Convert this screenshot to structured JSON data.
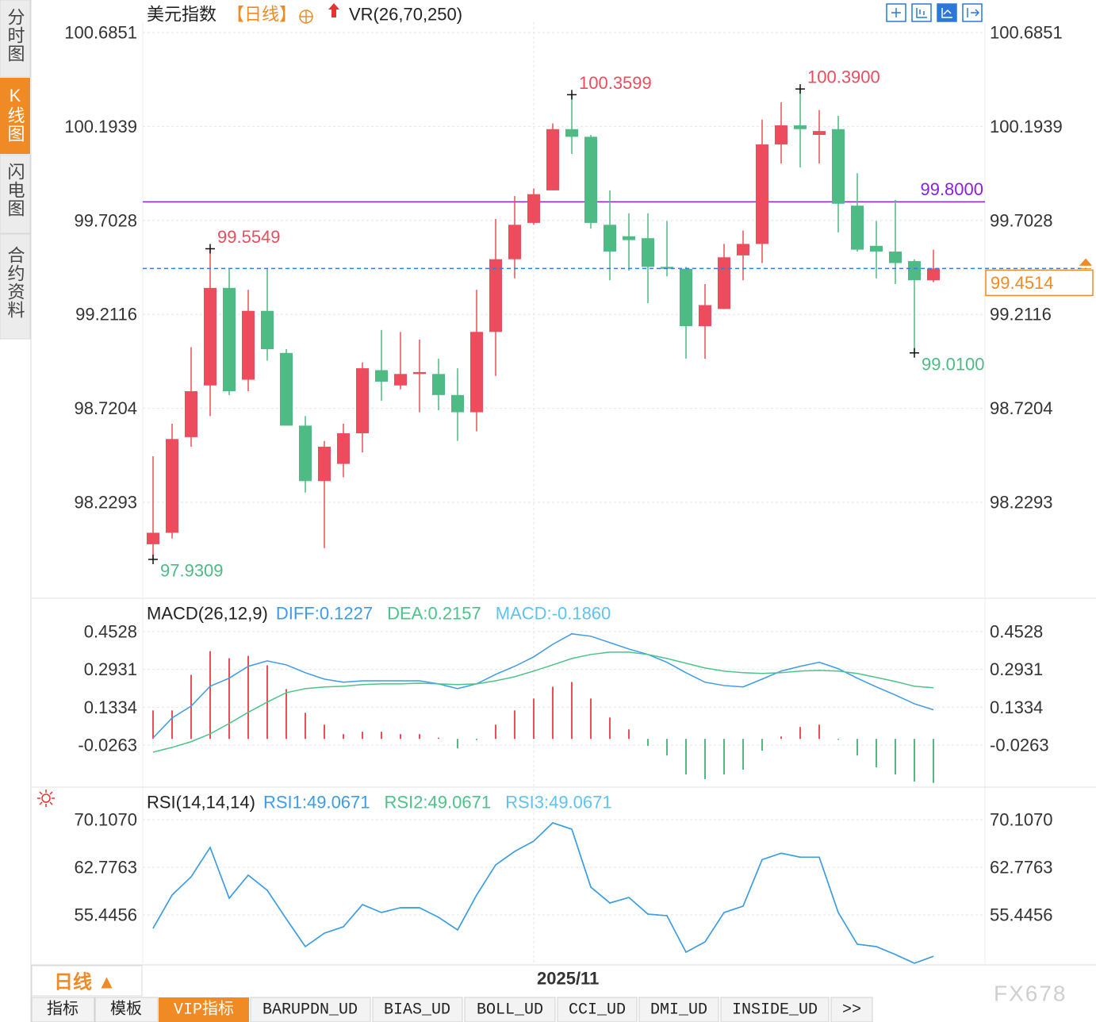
{
  "sidebar": [
    "分时图",
    "K线图",
    "闪电图",
    "合约资料"
  ],
  "chart_data": [
    {
      "type": "candlestick",
      "title": "美元指数",
      "subtitle": "【日线】",
      "indicator": "VR(26,70,250)",
      "categories": [
        null,
        null,
        null,
        null,
        null,
        null,
        null,
        null,
        null,
        null,
        null,
        null,
        null,
        null,
        null,
        null,
        null,
        null,
        null,
        null,
        "2025/11",
        null,
        null,
        null,
        null,
        null,
        null,
        null,
        null,
        null,
        null,
        null,
        null,
        null,
        null,
        null,
        null,
        null,
        null,
        null,
        null,
        null
      ],
      "open": [
        98.01,
        98.07,
        98.57,
        98.84,
        99.35,
        98.87,
        99.23,
        99.01,
        98.63,
        98.34,
        98.43,
        98.59,
        98.92,
        98.84,
        98.9,
        98.9,
        98.79,
        98.7,
        99.12,
        99.5,
        99.69,
        99.86,
        100.18,
        100.14,
        99.68,
        99.62,
        99.61,
        99.46,
        99.45,
        99.15,
        99.24,
        99.52,
        99.58,
        100.1,
        100.2,
        100.15,
        100.18,
        99.78,
        99.57,
        99.54,
        99.49,
        99.39
      ],
      "high": [
        98.47,
        98.64,
        99.04,
        99.5549,
        99.45,
        99.34,
        99.45,
        99.03,
        98.68,
        98.55,
        98.64,
        98.96,
        99.13,
        99.12,
        99.08,
        98.98,
        98.93,
        99.34,
        99.71,
        99.83,
        99.87,
        100.21,
        100.3599,
        100.15,
        99.86,
        99.74,
        99.74,
        99.7,
        99.46,
        99.37,
        99.58,
        99.65,
        100.23,
        100.32,
        100.39,
        100.28,
        100.25,
        99.95,
        99.7,
        99.81,
        99.5,
        99.55
      ],
      "low": [
        97.9309,
        98.04,
        98.52,
        98.68,
        98.79,
        98.81,
        98.97,
        98.63,
        98.28,
        97.99,
        98.36,
        98.49,
        98.76,
        98.82,
        98.7,
        98.71,
        98.55,
        98.6,
        98.89,
        99.4,
        99.68,
        99.86,
        100.05,
        99.66,
        99.39,
        99.44,
        99.27,
        99.41,
        98.98,
        98.98,
        99.24,
        99.39,
        99.48,
        100.0,
        99.98,
        100.0,
        99.64,
        99.54,
        99.4,
        99.37,
        99.01,
        99.38
      ],
      "close": [
        98.07,
        98.56,
        98.81,
        99.35,
        98.81,
        99.23,
        99.03,
        98.63,
        98.34,
        98.52,
        98.59,
        98.93,
        98.86,
        98.9,
        98.91,
        98.79,
        98.7,
        99.12,
        99.5,
        99.68,
        99.84,
        100.18,
        100.14,
        99.69,
        99.54,
        99.6,
        99.46,
        99.45,
        99.15,
        99.26,
        99.51,
        99.58,
        100.1,
        100.2,
        100.18,
        100.17,
        99.79,
        99.55,
        99.54,
        99.48,
        99.39,
        99.4514
      ],
      "up_color": "#eb4d5c",
      "down_color": "#4fba84",
      "ylim": [
        97.744,
        100.739
      ],
      "yticks": [
        100.6851,
        100.1939,
        99.7028,
        99.2116,
        98.7204,
        98.2293
      ],
      "grid": true,
      "annotations": [
        {
          "value": 99.5549,
          "label": "99.5549"
        },
        {
          "value": 100.3599,
          "label": "100.3599"
        },
        {
          "value": 100.39,
          "label": "100.3900"
        },
        {
          "value": 97.9309,
          "label": "97.9309"
        },
        {
          "value": 99.01,
          "label": "99.0100"
        }
      ],
      "hline": {
        "value": 99.8,
        "label": "99.8000",
        "color": "#8a1fe0"
      },
      "last_price": {
        "value": 99.4514,
        "label": "99.4514",
        "color": "#f08a24",
        "line_color": "#2d7fe0"
      }
    },
    {
      "type": "macd",
      "title": "MACD(26,12,9)",
      "ylim": [
        -0.197,
        0.583
      ],
      "yticks": [
        0.4528,
        0.2931,
        0.1334,
        -0.0263
      ],
      "grid": true,
      "series": [
        {
          "name": "DIFF:0.1227",
          "color": "#3d9be9",
          "values": [
            0.004,
            0.088,
            0.138,
            0.222,
            0.256,
            0.306,
            0.329,
            0.312,
            0.279,
            0.252,
            0.239,
            0.245,
            0.245,
            0.245,
            0.245,
            0.232,
            0.212,
            0.232,
            0.272,
            0.306,
            0.346,
            0.399,
            0.443,
            0.433,
            0.406,
            0.379,
            0.356,
            0.323,
            0.279,
            0.239,
            0.225,
            0.219,
            0.252,
            0.286,
            0.306,
            0.323,
            0.296,
            0.256,
            0.219,
            0.185,
            0.148,
            0.1227
          ]
        },
        {
          "name": "DEA:0.2157",
          "color": "#4cc38a",
          "values": [
            -0.056,
            -0.036,
            -0.012,
            0.021,
            0.065,
            0.112,
            0.155,
            0.195,
            0.212,
            0.219,
            0.222,
            0.229,
            0.232,
            0.232,
            0.235,
            0.232,
            0.229,
            0.232,
            0.245,
            0.262,
            0.286,
            0.312,
            0.339,
            0.356,
            0.366,
            0.366,
            0.356,
            0.339,
            0.319,
            0.299,
            0.286,
            0.279,
            0.276,
            0.279,
            0.286,
            0.289,
            0.286,
            0.276,
            0.259,
            0.242,
            0.222,
            0.2157
          ]
        },
        {
          "name": "MACD:-0.1860",
          "color": "#5fc3ef",
          "type": "bar",
          "up_color": "#eb4d5c",
          "down_color": "#4fba84",
          "values": [
            0.12,
            0.12,
            0.27,
            0.37,
            0.34,
            0.35,
            0.31,
            0.21,
            0.11,
            0.06,
            0.02,
            0.03,
            0.03,
            0.02,
            0.02,
            0.005,
            -0.04,
            -0.005,
            0.06,
            0.12,
            0.17,
            0.22,
            0.24,
            0.17,
            0.09,
            0.04,
            -0.03,
            -0.07,
            -0.15,
            -0.17,
            -0.15,
            -0.13,
            -0.05,
            0.01,
            0.05,
            0.06,
            -0.004,
            -0.07,
            -0.12,
            -0.15,
            -0.18,
            -0.186
          ]
        }
      ]
    },
    {
      "type": "line",
      "title": "RSI(14,14,14)",
      "ylim": [
        47.87,
        74.75
      ],
      "yticks": [
        {
          "value": 70.107,
          "label": "70.1070"
        },
        62.7763,
        55.4456
      ],
      "grid": true,
      "series": [
        {
          "name": "RSI1:49.0671",
          "color": "#3d9be9",
          "values": [
            53.37,
            58.5,
            61.31,
            65.83,
            58.01,
            61.56,
            59.23,
            54.83,
            50.56,
            52.63,
            53.61,
            57.03,
            55.81,
            56.55,
            56.55,
            55.08,
            53.12,
            58.5,
            63.14,
            65.22,
            66.81,
            69.62,
            68.64,
            59.72,
            57.28,
            58.13,
            55.57,
            55.32,
            49.7,
            51.29,
            55.81,
            56.79,
            63.96,
            64.94,
            64.33,
            64.33,
            55.81,
            50.93,
            50.56,
            49.34,
            48.0,
            49.0671
          ]
        },
        {
          "name": "RSI2:49.0671",
          "color": "#4cc38a",
          "values": [
            53.37,
            58.5,
            61.31,
            65.83,
            58.01,
            61.56,
            59.23,
            54.83,
            50.56,
            52.63,
            53.61,
            57.03,
            55.81,
            56.55,
            56.55,
            55.08,
            53.12,
            58.5,
            63.14,
            65.22,
            66.81,
            69.62,
            68.64,
            59.72,
            57.28,
            58.13,
            55.57,
            55.32,
            49.7,
            51.29,
            55.81,
            56.79,
            63.96,
            64.94,
            64.33,
            64.33,
            55.81,
            50.93,
            50.56,
            49.34,
            48.0,
            49.0671
          ]
        },
        {
          "name": "RSI3:49.0671",
          "color": "#5fc3ef",
          "values": [
            53.37,
            58.5,
            61.31,
            65.83,
            58.01,
            61.56,
            59.23,
            54.83,
            50.56,
            52.63,
            53.61,
            57.03,
            55.81,
            56.55,
            56.55,
            55.08,
            53.12,
            58.5,
            63.14,
            65.22,
            66.81,
            69.62,
            68.64,
            59.72,
            57.28,
            58.13,
            55.57,
            55.32,
            49.7,
            51.29,
            55.81,
            56.79,
            63.96,
            64.94,
            64.33,
            64.33,
            55.81,
            50.93,
            50.56,
            49.34,
            48.0,
            49.0671
          ]
        }
      ]
    }
  ],
  "footer": {
    "period_button": "日线 ▲",
    "tabs": [
      "指标",
      "模板",
      "VIP指标",
      "BARUPDN_UD",
      "BIAS_UD",
      "BOLL_UD",
      "CCI_UD",
      "DMI_UD",
      "INSIDE_UD",
      ">>"
    ],
    "watermark": "FX678"
  }
}
